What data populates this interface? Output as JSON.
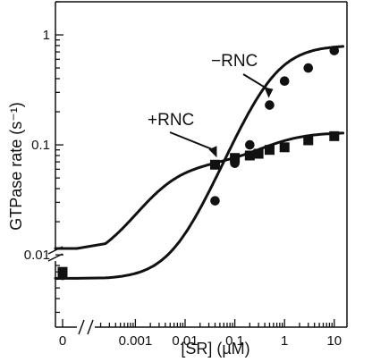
{
  "chart_data": {
    "type": "scatter",
    "title": "",
    "xlabel": "[SR] (µM)",
    "ylabel": "GTPase rate (s⁻¹)",
    "x_scale": "log",
    "y_scale": "log",
    "x_axis_break": true,
    "y_axis_break": true,
    "xlim": [
      0.00018,
      18
    ],
    "ylim": [
      0.0022,
      2
    ],
    "x_ticks": [
      {
        "value": 0.001,
        "label": "0.001"
      },
      {
        "value": 0.01,
        "label": "0.01"
      },
      {
        "value": 0.1,
        "label": "0.1"
      },
      {
        "value": 1,
        "label": "1"
      },
      {
        "value": 10,
        "label": "10"
      }
    ],
    "x_zero_label": "0",
    "y_ticks": [
      {
        "value": 0.01,
        "label": "0.01"
      },
      {
        "value": 0.1,
        "label": "0.1"
      },
      {
        "value": 1,
        "label": "1"
      }
    ],
    "series": [
      {
        "name": "−RNC",
        "marker": "circle",
        "zero_point": 0.0065,
        "points": [
          {
            "x": 0.04,
            "y": 0.031
          },
          {
            "x": 0.1,
            "y": 0.068
          },
          {
            "x": 0.2,
            "y": 0.1
          },
          {
            "x": 0.5,
            "y": 0.23
          },
          {
            "x": 1,
            "y": 0.38
          },
          {
            "x": 3,
            "y": 0.5
          },
          {
            "x": 10,
            "y": 0.72
          }
        ],
        "fit": {
          "model": "hill",
          "base": 0.006,
          "max": 0.8,
          "K": 0.55,
          "n": 1.1
        }
      },
      {
        "name": "+RNC",
        "marker": "square",
        "zero_point": 0.007,
        "points": [
          {
            "x": 0.04,
            "y": 0.066
          },
          {
            "x": 0.1,
            "y": 0.076
          },
          {
            "x": 0.2,
            "y": 0.08
          },
          {
            "x": 0.3,
            "y": 0.083
          },
          {
            "x": 0.5,
            "y": 0.09
          },
          {
            "x": 1,
            "y": 0.095
          },
          {
            "x": 3,
            "y": 0.11
          },
          {
            "x": 10,
            "y": 0.12
          }
        ],
        "fit": {
          "model": "two-site",
          "base": 0.008,
          "a1": 0.06,
          "K1": 0.003,
          "a2": 0.062,
          "K2": 0.5
        }
      }
    ],
    "annotations": [
      {
        "text": "−RNC",
        "series": "−RNC"
      },
      {
        "text": "+RNC",
        "series": "+RNC"
      }
    ],
    "grid": false,
    "legend": "none"
  }
}
